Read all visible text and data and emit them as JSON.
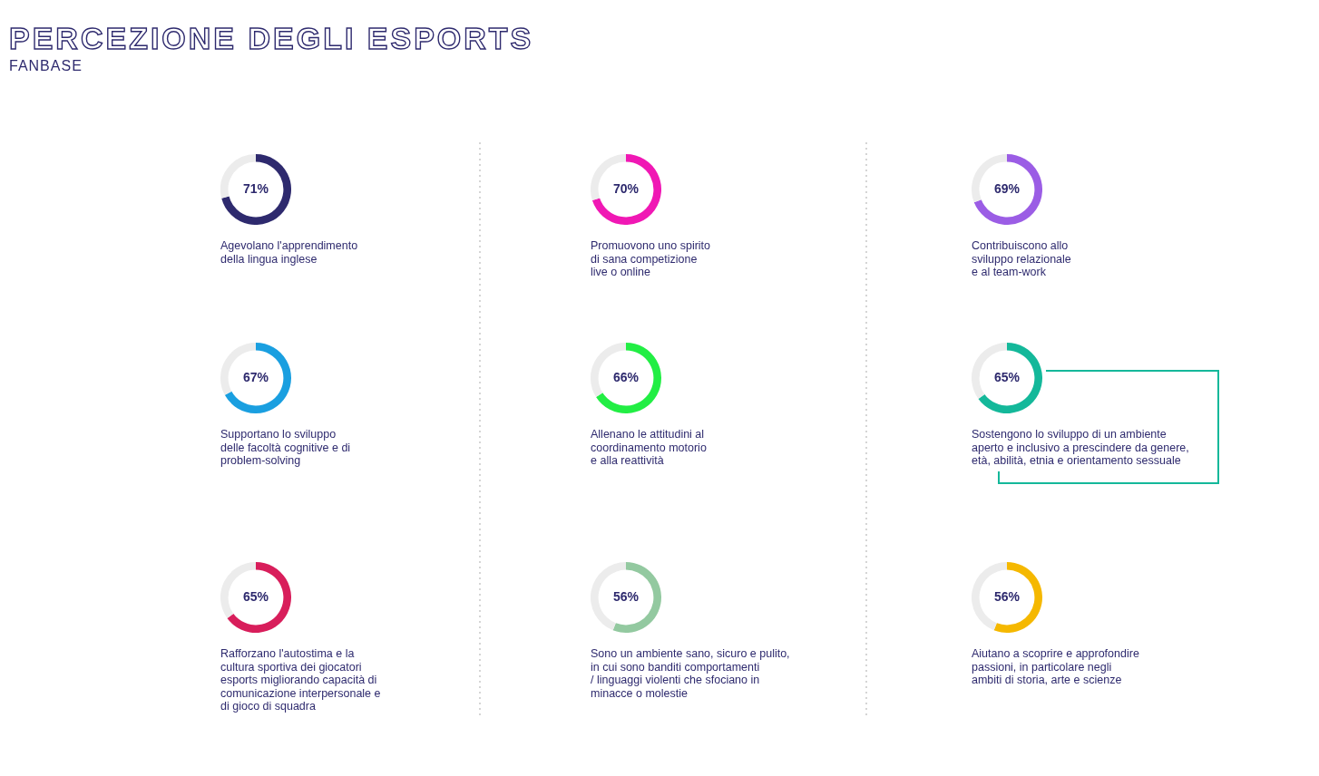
{
  "chart_data": [
    {
      "type": "other",
      "title": "PERCEZIONE DEGLI ESPORTS",
      "subtitle": "FANBASE"
    },
    {
      "type": "donut",
      "title": "Agevolano l'apprendimento\ndella lingua inglese",
      "categories": [
        null,
        null
      ],
      "values": [
        71,
        29
      ],
      "colors": [
        "#2e2a6e",
        "#ececec"
      ],
      "value_labels": [
        "71%",
        null
      ]
    },
    {
      "type": "donut",
      "title": "Promuovono uno spirito\ndi sana competizione\nlive o online",
      "categories": [
        null,
        null
      ],
      "values": [
        70,
        30
      ],
      "colors": [
        "#f018b4",
        "#ececec"
      ],
      "value_labels": [
        "70%",
        null
      ]
    },
    {
      "type": "donut",
      "title": "Contribuiscono allo\nsviluppo relazionale\ne al team-work",
      "categories": [
        null,
        null
      ],
      "values": [
        69,
        31
      ],
      "colors": [
        "#9b5de5",
        "#ececec"
      ],
      "value_labels": [
        "69%",
        null
      ]
    },
    {
      "type": "donut",
      "title": "Supportano lo sviluppo\ndelle facoltà cognitive e di\nproblem-solving",
      "categories": [
        null,
        null
      ],
      "values": [
        67,
        33
      ],
      "colors": [
        "#1a9fe0",
        "#ececec"
      ],
      "value_labels": [
        "67%",
        null
      ]
    },
    {
      "type": "donut",
      "title": "Allenano le attitudini al\ncoordinamento motorio\ne alla reattività",
      "categories": [
        null,
        null
      ],
      "values": [
        66,
        34
      ],
      "colors": [
        "#22ee44",
        "#ececec"
      ],
      "value_labels": [
        "66%",
        null
      ]
    },
    {
      "type": "donut",
      "title": "Sostengono lo sviluppo di un ambiente\naperto e inclusivo a prescindere da genere,\netà, abilità, etnia e orientamento sessuale",
      "categories": [
        null,
        null
      ],
      "values": [
        65,
        35
      ],
      "colors": [
        "#14b89a",
        "#ececec"
      ],
      "value_labels": [
        "65%",
        null
      ]
    },
    {
      "type": "donut",
      "title": "Rafforzano l'autostima e la\ncultura sportiva dei giocatori\nesports migliorando capacità di\ncomunicazione interpersonale e\ndi gioco di squadra",
      "categories": [
        null,
        null
      ],
      "values": [
        65,
        35
      ],
      "colors": [
        "#d81e5b",
        "#ececec"
      ],
      "value_labels": [
        "65%",
        null
      ]
    },
    {
      "type": "donut",
      "title": "Sono un ambiente sano, sicuro e pulito,\nin cui sono banditi comportamenti\n/ linguaggi violenti che sfociano in\nminacce o molestie",
      "categories": [
        null,
        null
      ],
      "values": [
        56,
        44
      ],
      "colors": [
        "#93c9a0",
        "#ececec"
      ],
      "value_labels": [
        "56%",
        null
      ]
    },
    {
      "type": "donut",
      "title": "Aiutano a scoprire e approfondire\npassioni, in particolare negli\nambiti di storia, arte e scienze",
      "categories": [
        null,
        null
      ],
      "values": [
        56,
        44
      ],
      "colors": [
        "#f5b800",
        "#ececec"
      ],
      "value_labels": [
        "56%",
        null
      ]
    }
  ]
}
